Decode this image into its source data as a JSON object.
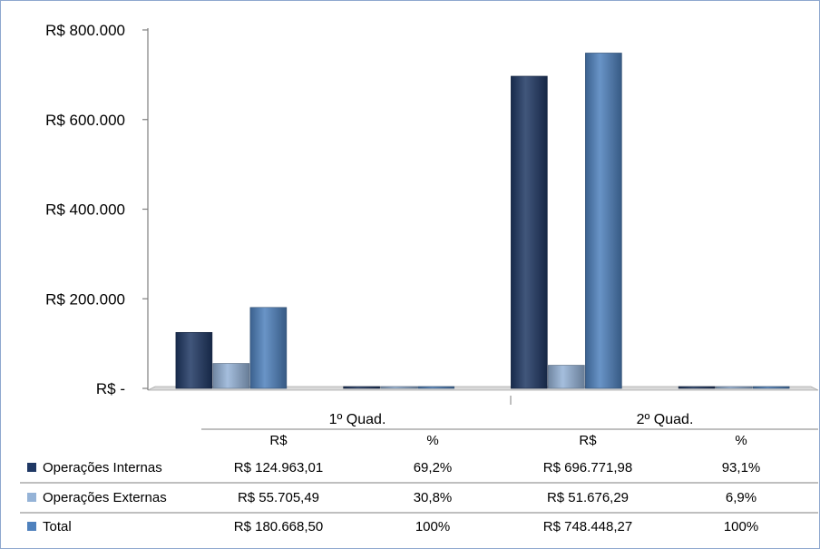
{
  "chart_data": {
    "type": "bar",
    "categories": [
      "1º Quad.",
      "",
      "2º Quad.",
      ""
    ],
    "series": [
      {
        "name": "Operações Internas",
        "values": [
          124963.01,
          0,
          696771.98,
          0
        ],
        "color": "#1f3864"
      },
      {
        "name": "Operações Externas",
        "values": [
          55705.49,
          0,
          51676.29,
          0
        ],
        "color": "#95b3d7"
      },
      {
        "name": "Total",
        "values": [
          180668.5,
          0,
          748448.27,
          0
        ],
        "color": "#4f81bd"
      }
    ],
    "ylim": [
      0,
      800000
    ],
    "yticks": [
      {
        "value": 0,
        "label": "R$ -"
      },
      {
        "value": 200000,
        "label": "R$ 200.000"
      },
      {
        "value": 400000,
        "label": "R$ 400.000"
      },
      {
        "value": 600000,
        "label": "R$ 600.000"
      },
      {
        "value": 800000,
        "label": "R$ 800.000"
      }
    ],
    "grid": false,
    "legend": "in data table",
    "data_table": {
      "groups": [
        "1º Quad.",
        "2º Quad."
      ],
      "columns": [
        "R$",
        "%",
        "R$",
        "%"
      ],
      "rows": [
        {
          "label": "Operações Internas",
          "cells": [
            "R$ 124.963,01",
            "69,2%",
            "R$ 696.771,98",
            "93,1%"
          ]
        },
        {
          "label": "Operações Externas",
          "cells": [
            "R$ 55.705,49",
            "30,8%",
            "R$ 51.676,29",
            "6,9%"
          ]
        },
        {
          "label": "Total",
          "cells": [
            "R$ 180.668,50",
            "100%",
            "R$ 748.448,27",
            "100%"
          ]
        }
      ]
    }
  }
}
